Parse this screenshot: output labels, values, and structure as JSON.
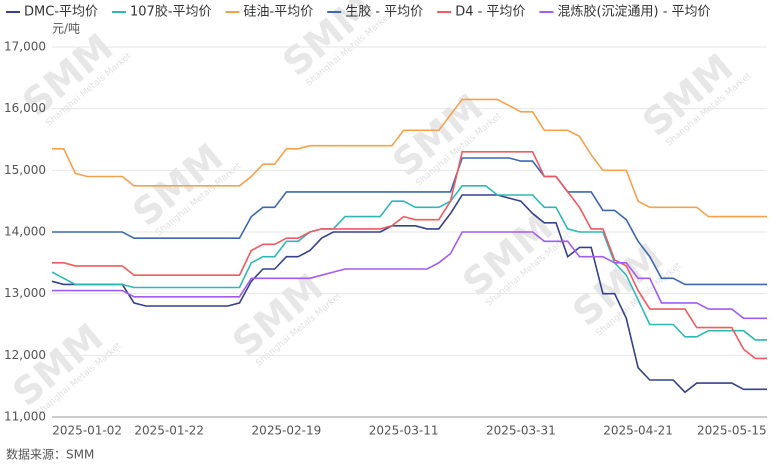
{
  "chart_data": {
    "type": "line",
    "unit_label": "元/吨",
    "source": "数据来源：SMM",
    "watermark": {
      "logo": "SMM",
      "text": "Shanghai Metals Market"
    },
    "legend": "top",
    "grid": true,
    "categories": [
      null,
      null,
      null,
      "2025-01-02",
      null,
      null,
      null,
      null,
      null,
      null,
      "2025-01-22",
      null,
      null,
      null,
      null,
      null,
      null,
      null,
      null,
      null,
      "2025-02-19",
      null,
      null,
      null,
      null,
      null,
      null,
      null,
      null,
      null,
      "2025-03-11",
      null,
      null,
      null,
      null,
      null,
      null,
      null,
      null,
      null,
      "2025-03-31",
      null,
      null,
      null,
      null,
      null,
      null,
      null,
      null,
      null,
      "2025-04-21",
      null,
      null,
      null,
      null,
      null,
      null,
      null,
      "2025-05-15",
      null,
      null,
      null
    ],
    "ylim": [
      11000,
      17000
    ],
    "yticks": [
      {
        "value": 11000,
        "label": "11,000"
      },
      {
        "value": 12000,
        "label": "12,000"
      },
      {
        "value": 13000,
        "label": "13,000"
      },
      {
        "value": 14000,
        "label": "14,000"
      },
      {
        "value": 15000,
        "label": "15,000"
      },
      {
        "value": 16000,
        "label": "16,000"
      },
      {
        "value": 17000,
        "label": "17,000"
      }
    ],
    "series": [
      {
        "name": "DMC-平均价",
        "color": "#34428a",
        "values": [
          13200,
          13150,
          13150,
          13150,
          13150,
          13150,
          13150,
          12850,
          12800,
          12800,
          12800,
          12800,
          12800,
          12800,
          12800,
          12800,
          12850,
          13200,
          13400,
          13400,
          13600,
          13600,
          13700,
          13900,
          14000,
          14000,
          14000,
          14000,
          14000,
          14100,
          14100,
          14100,
          14050,
          14050,
          14300,
          14600,
          14600,
          14600,
          14600,
          14550,
          14500,
          14300,
          14150,
          14150,
          13600,
          13750,
          13750,
          13000,
          13000,
          12600,
          11800,
          11600,
          11600,
          11600,
          11400,
          11550,
          11550,
          11550,
          11550,
          11450,
          11450,
          11450
        ]
      },
      {
        "name": "107胶-平均价",
        "color": "#2fb7b7",
        "values": [
          13350,
          13250,
          13150,
          13150,
          13150,
          13150,
          13150,
          13100,
          13100,
          13100,
          13100,
          13100,
          13100,
          13100,
          13100,
          13100,
          13100,
          13500,
          13600,
          13600,
          13850,
          13850,
          14000,
          14050,
          14050,
          14250,
          14250,
          14250,
          14250,
          14500,
          14500,
          14400,
          14400,
          14400,
          14500,
          14750,
          14750,
          14750,
          14600,
          14600,
          14600,
          14600,
          14400,
          14400,
          14050,
          14000,
          14000,
          14000,
          13500,
          13300,
          12900,
          12500,
          12500,
          12500,
          12300,
          12300,
          12400,
          12400,
          12400,
          12400,
          12250,
          12250
        ]
      },
      {
        "name": "硅油-平均价",
        "color": "#f4a24c",
        "values": [
          15350,
          15350,
          14950,
          14900,
          14900,
          14900,
          14900,
          14750,
          14750,
          14750,
          14750,
          14750,
          14750,
          14750,
          14750,
          14750,
          14750,
          14900,
          15100,
          15100,
          15350,
          15350,
          15400,
          15400,
          15400,
          15400,
          15400,
          15400,
          15400,
          15400,
          15650,
          15650,
          15650,
          15650,
          15900,
          16150,
          16150,
          16150,
          16150,
          16050,
          15950,
          15950,
          15650,
          15650,
          15650,
          15550,
          15250,
          15000,
          15000,
          15000,
          14500,
          14400,
          14400,
          14400,
          14400,
          14400,
          14250,
          14250,
          14250,
          14250,
          14250,
          14250
        ]
      },
      {
        "name": "生胶 - 平均价",
        "color": "#3d68ad",
        "values": [
          14000,
          14000,
          14000,
          14000,
          14000,
          14000,
          14000,
          13900,
          13900,
          13900,
          13900,
          13900,
          13900,
          13900,
          13900,
          13900,
          13900,
          14250,
          14400,
          14400,
          14650,
          14650,
          14650,
          14650,
          14650,
          14650,
          14650,
          14650,
          14650,
          14650,
          14650,
          14650,
          14650,
          14650,
          14650,
          15200,
          15200,
          15200,
          15200,
          15200,
          15150,
          15150,
          14900,
          14900,
          14650,
          14650,
          14650,
          14350,
          14350,
          14200,
          13850,
          13600,
          13250,
          13250,
          13150,
          13150,
          13150,
          13150,
          13150,
          13150,
          13150,
          13150
        ]
      },
      {
        "name": "D4 - 平均价",
        "color": "#ee5b60",
        "values": [
          13500,
          13500,
          13450,
          13450,
          13450,
          13450,
          13450,
          13300,
          13300,
          13300,
          13300,
          13300,
          13300,
          13300,
          13300,
          13300,
          13300,
          13700,
          13800,
          13800,
          13900,
          13900,
          14000,
          14050,
          14050,
          14050,
          14050,
          14050,
          14050,
          14100,
          14250,
          14200,
          14200,
          14200,
          14500,
          15300,
          15300,
          15300,
          15300,
          15300,
          15300,
          15300,
          14900,
          14900,
          14650,
          14400,
          14050,
          14050,
          13550,
          13450,
          13050,
          12750,
          12750,
          12750,
          12750,
          12450,
          12450,
          12450,
          12450,
          12100,
          11950,
          11950
        ]
      },
      {
        "name": "混炼胶(沉淀通用) - 平均价",
        "color": "#a35cf0",
        "values": [
          13050,
          13050,
          13050,
          13050,
          13050,
          13050,
          13050,
          12950,
          12950,
          12950,
          12950,
          12950,
          12950,
          12950,
          12950,
          12950,
          12950,
          13250,
          13250,
          13250,
          13250,
          13250,
          13250,
          13300,
          13350,
          13400,
          13400,
          13400,
          13400,
          13400,
          13400,
          13400,
          13400,
          13500,
          13650,
          14000,
          14000,
          14000,
          14000,
          14000,
          14000,
          14000,
          13850,
          13850,
          13850,
          13600,
          13600,
          13600,
          13500,
          13500,
          13250,
          13250,
          12850,
          12850,
          12850,
          12850,
          12750,
          12750,
          12750,
          12600,
          12600,
          12600
        ]
      }
    ]
  }
}
